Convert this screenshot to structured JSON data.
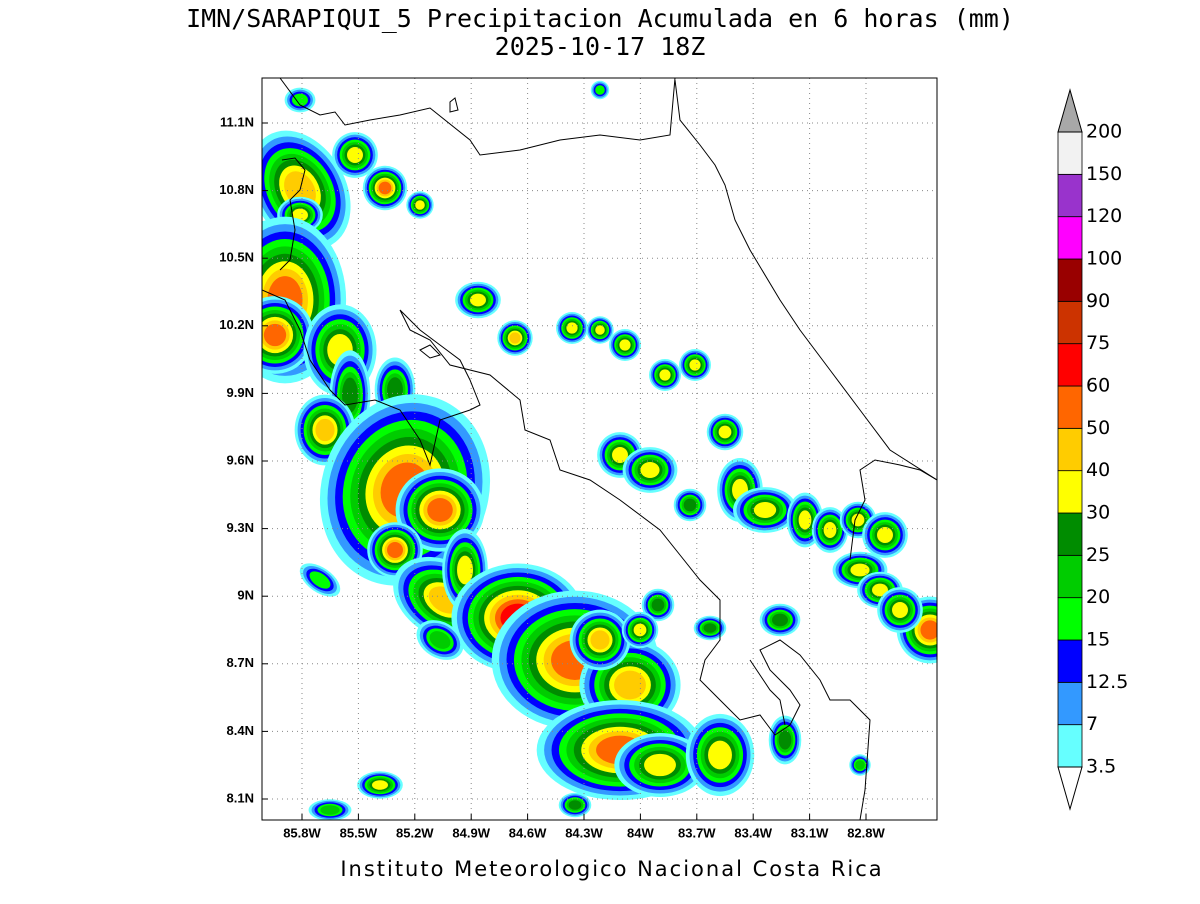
{
  "title": "IMN/SARAPIQUI_5 Precipitacion Acumulada en 6 horas (mm)",
  "subtitle": "2025-10-17 18Z",
  "footer": "Instituto Meteorologico Nacional Costa Rica",
  "map": {
    "lon_ticks": [
      {
        "value": -85.8,
        "label": "85.8W"
      },
      {
        "value": -85.5,
        "label": "85.5W"
      },
      {
        "value": -85.2,
        "label": "85.2W"
      },
      {
        "value": -84.9,
        "label": "84.9W"
      },
      {
        "value": -84.6,
        "label": "84.6W"
      },
      {
        "value": -84.3,
        "label": "84.3W"
      },
      {
        "value": -84,
        "label": "84W"
      },
      {
        "value": -83.7,
        "label": "83.7W"
      },
      {
        "value": -83.4,
        "label": "83.4W"
      },
      {
        "value": -83.1,
        "label": "83.1W"
      },
      {
        "value": -82.8,
        "label": "82.8W"
      }
    ],
    "lat_ticks": [
      {
        "value": 11.1,
        "label": "11.1N"
      },
      {
        "value": 10.8,
        "label": "10.8N"
      },
      {
        "value": 10.5,
        "label": "10.5N"
      },
      {
        "value": 10.2,
        "label": "10.2N"
      },
      {
        "value": 9.9,
        "label": "9.9N"
      },
      {
        "value": 9.6,
        "label": "9.6N"
      },
      {
        "value": 9.3,
        "label": "9.3N"
      },
      {
        "value": 9,
        "label": "9N"
      },
      {
        "value": 8.7,
        "label": "8.7N"
      },
      {
        "value": 8.4,
        "label": "8.4N"
      },
      {
        "value": 8.1,
        "label": "8.1N"
      }
    ]
  },
  "colorbar": {
    "levels": [
      3.5,
      7,
      12.5,
      15,
      20,
      25,
      30,
      40,
      50,
      60,
      75,
      90,
      100,
      120,
      150,
      200
    ],
    "colors": [
      "#66ffff",
      "#3399ff",
      "#0000ff",
      "#00ff00",
      "#00cc00",
      "#008c00",
      "#ffff00",
      "#ffcc00",
      "#ff6600",
      "#ff0000",
      "#cc3300",
      "#990000",
      "#ff00ff",
      "#9933cc",
      "#f2f2f2"
    ],
    "under_color": "#ffffff",
    "over_color": "#a8a8a8"
  }
}
